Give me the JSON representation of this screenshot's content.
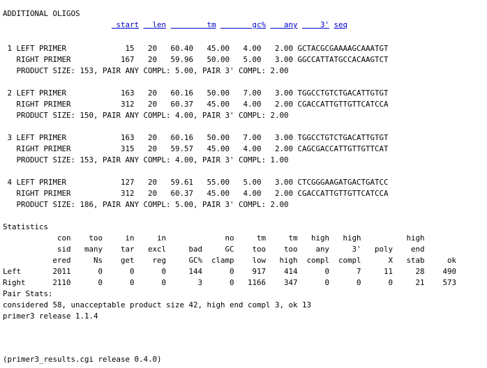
{
  "section_title": "ADDITIONAL OLIGOS",
  "column_headers": [
    "start",
    "len",
    "tm",
    "gc%",
    "any",
    "3'",
    "seq"
  ],
  "oligos": [
    {
      "num": "1",
      "left": {
        "label": "LEFT PRIMER",
        "start": "15",
        "len": "20",
        "tm": "60.40",
        "gc": "45.00",
        "any": "4.00",
        "three": "2.00",
        "seq": "GCTACGCGAAAAGCAAATGT"
      },
      "right": {
        "label": "RIGHT PRIMER",
        "start": "167",
        "len": "20",
        "tm": "59.96",
        "gc": "50.00",
        "any": "5.00",
        "three": "3.00",
        "seq": "GGCCATTATGCCACAAGTCT"
      },
      "product": "PRODUCT SIZE: 153, PAIR ANY COMPL: 5.00, PAIR 3' COMPL: 2.00"
    },
    {
      "num": "2",
      "left": {
        "label": "LEFT PRIMER",
        "start": "163",
        "len": "20",
        "tm": "60.16",
        "gc": "50.00",
        "any": "7.00",
        "three": "3.00",
        "seq": "TGGCCTGTCTGACATTGTGT"
      },
      "right": {
        "label": "RIGHT PRIMER",
        "start": "312",
        "len": "20",
        "tm": "60.37",
        "gc": "45.00",
        "any": "4.00",
        "three": "2.00",
        "seq": "CGACCATTGTTGTTCATCCA"
      },
      "product": "PRODUCT SIZE: 150, PAIR ANY COMPL: 4.00, PAIR 3' COMPL: 2.00"
    },
    {
      "num": "3",
      "left": {
        "label": "LEFT PRIMER",
        "start": "163",
        "len": "20",
        "tm": "60.16",
        "gc": "50.00",
        "any": "7.00",
        "three": "3.00",
        "seq": "TGGCCTGTCTGACATTGTGT"
      },
      "right": {
        "label": "RIGHT PRIMER",
        "start": "315",
        "len": "20",
        "tm": "59.57",
        "gc": "45.00",
        "any": "4.00",
        "three": "2.00",
        "seq": "CAGCGACCATTGTTGTTCAT"
      },
      "product": "PRODUCT SIZE: 153, PAIR ANY COMPL: 4.00, PAIR 3' COMPL: 1.00"
    },
    {
      "num": "4",
      "left": {
        "label": "LEFT PRIMER",
        "start": "127",
        "len": "20",
        "tm": "59.61",
        "gc": "55.00",
        "any": "5.00",
        "three": "3.00",
        "seq": "CTCGGGAAGATGACTGATCC"
      },
      "right": {
        "label": "RIGHT PRIMER",
        "start": "312",
        "len": "20",
        "tm": "60.37",
        "gc": "45.00",
        "any": "4.00",
        "three": "2.00",
        "seq": "CGACCATTGTTGTTCATCCA"
      },
      "product": "PRODUCT SIZE: 186, PAIR ANY COMPL: 5.00, PAIR 3' COMPL: 2.00"
    }
  ],
  "statistics": {
    "title": "Statistics",
    "header_rows": [
      [
        "con",
        "too",
        "in",
        "in",
        "",
        "no",
        "tm",
        "tm",
        "high",
        "high",
        "",
        "high",
        ""
      ],
      [
        "sid",
        "many",
        "tar",
        "excl",
        "bad",
        "GC",
        "too",
        "too",
        "any",
        "3'",
        "poly",
        "end",
        ""
      ],
      [
        "ered",
        "Ns",
        "get",
        "reg",
        "GC%",
        "clamp",
        "low",
        "high",
        "compl",
        "compl",
        "X",
        "stab",
        "ok"
      ]
    ],
    "rows": [
      {
        "label": "Left",
        "values": [
          "2011",
          "0",
          "0",
          "0",
          "144",
          "0",
          "917",
          "414",
          "0",
          "7",
          "11",
          "28",
          "490"
        ]
      },
      {
        "label": "Right",
        "values": [
          "2110",
          "0",
          "0",
          "0",
          "3",
          "0",
          "1166",
          "347",
          "0",
          "0",
          "0",
          "21",
          "573"
        ]
      }
    ],
    "pair_stats_label": "Pair Stats:",
    "pair_stats": "considered 58, unacceptable product size 42, high end compl 3, ok 13",
    "release": "primer3 release 1.1.4"
  },
  "footer": "(primer3_results.cgi release 0.4.0)"
}
